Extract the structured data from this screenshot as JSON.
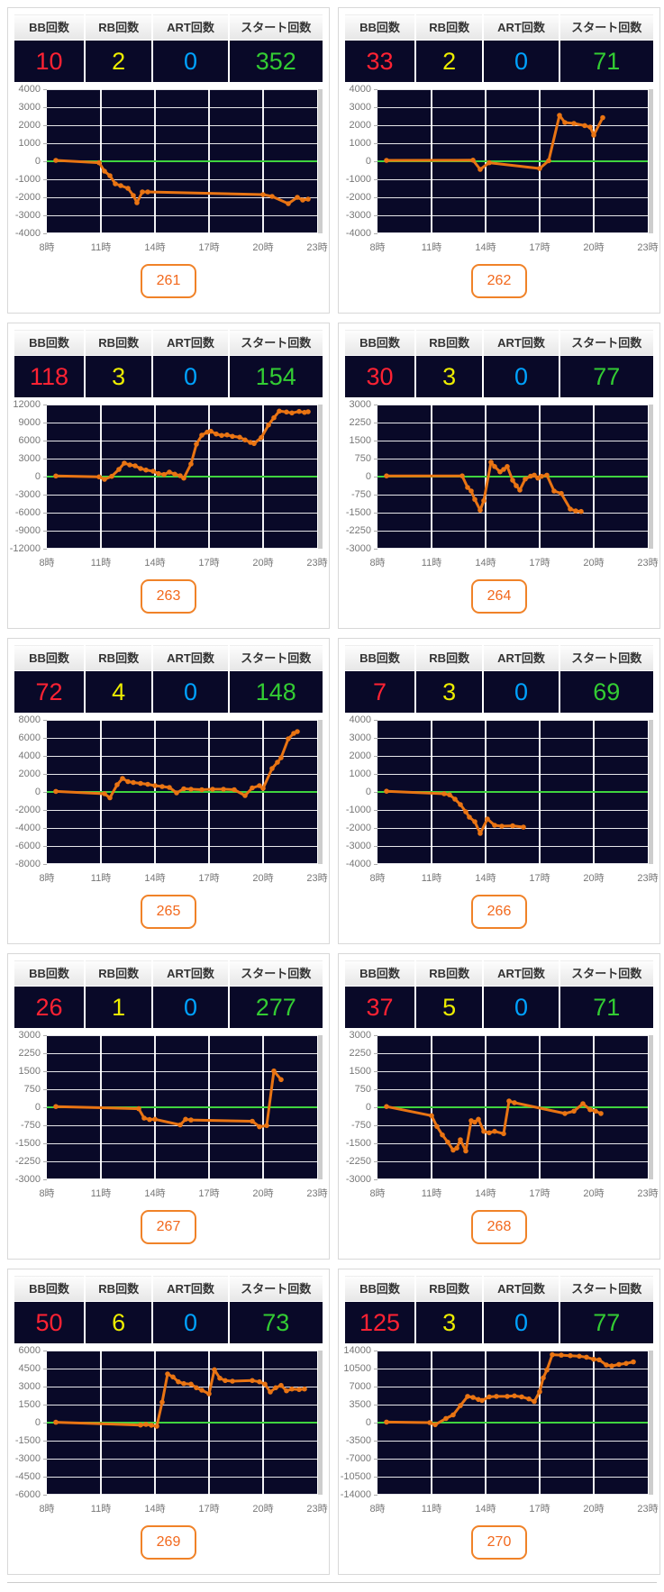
{
  "columns": [
    "BB回数",
    "RB回数",
    "ART回数",
    "スタート回数"
  ],
  "x_ticks": [
    "8時",
    "11時",
    "14時",
    "17時",
    "20時",
    "23時"
  ],
  "x_tick_hours": [
    8,
    11,
    14,
    17,
    20,
    23
  ],
  "colors": {
    "value_colors": [
      "#ff2233",
      "#ededoo",
      "#00a2ff",
      "#33cc33"
    ],
    "bb": "#ff2233",
    "rb": "#eded00",
    "art": "#00a2ff",
    "start": "#33cc33",
    "line": "#e97413",
    "zero_line": "#3fd43f",
    "plot_bg": "#090928",
    "grid_line": "#ffffff",
    "badge_border": "#f08228",
    "badge_text": "#f2681c"
  },
  "chart_data": [
    {
      "type": "line",
      "machine": "261",
      "values": [
        "10",
        "2",
        "0",
        "352"
      ],
      "ylim": [
        -4000,
        4000
      ],
      "y_step": 1000,
      "y_ticks": [
        "4000",
        "3000",
        "2000",
        "1000",
        "0",
        "-1000",
        "-2000",
        "-3000",
        "-4000"
      ],
      "points": [
        [
          8.5,
          50
        ],
        [
          10.9,
          -80
        ],
        [
          11.2,
          -550
        ],
        [
          11.5,
          -800
        ],
        [
          11.8,
          -1250
        ],
        [
          12.1,
          -1350
        ],
        [
          12.5,
          -1500
        ],
        [
          12.8,
          -1900
        ],
        [
          13.0,
          -2300
        ],
        [
          13.3,
          -1700
        ],
        [
          13.6,
          -1700
        ],
        [
          20.0,
          -1850
        ],
        [
          20.5,
          -1950
        ],
        [
          21.4,
          -2350
        ],
        [
          21.9,
          -2000
        ],
        [
          22.2,
          -2150
        ],
        [
          22.5,
          -2100
        ]
      ]
    },
    {
      "type": "line",
      "machine": "262",
      "values": [
        "33",
        "2",
        "0",
        "71"
      ],
      "ylim": [
        -4000,
        4000
      ],
      "y_step": 1000,
      "y_ticks": [
        "4000",
        "3000",
        "2000",
        "1000",
        "0",
        "-1000",
        "-2000",
        "-3000",
        "-4000"
      ],
      "points": [
        [
          8.5,
          50
        ],
        [
          13.3,
          60
        ],
        [
          13.7,
          -450
        ],
        [
          14.2,
          -80
        ],
        [
          17.0,
          -400
        ],
        [
          17.5,
          30
        ],
        [
          18.1,
          2550
        ],
        [
          18.4,
          2150
        ],
        [
          18.9,
          2100
        ],
        [
          19.5,
          1980
        ],
        [
          19.8,
          1900
        ],
        [
          20.0,
          1450
        ],
        [
          20.5,
          2420
        ]
      ]
    },
    {
      "type": "line",
      "machine": "263",
      "values": [
        "118",
        "3",
        "0",
        "154"
      ],
      "ylim": [
        -12000,
        12000
      ],
      "y_step": 3000,
      "y_ticks": [
        "12000",
        "9000",
        "6000",
        "3000",
        "0",
        "-3000",
        "-6000",
        "-9000",
        "-12000"
      ],
      "points": [
        [
          8.5,
          100
        ],
        [
          10.9,
          -50
        ],
        [
          11.2,
          -450
        ],
        [
          11.6,
          50
        ],
        [
          12.0,
          1200
        ],
        [
          12.3,
          2250
        ],
        [
          12.6,
          1950
        ],
        [
          12.9,
          1800
        ],
        [
          13.2,
          1350
        ],
        [
          13.5,
          1100
        ],
        [
          13.9,
          900
        ],
        [
          14.2,
          500
        ],
        [
          14.5,
          350
        ],
        [
          14.8,
          750
        ],
        [
          15.1,
          400
        ],
        [
          15.4,
          150
        ],
        [
          15.6,
          -250
        ],
        [
          16.0,
          2100
        ],
        [
          16.3,
          5400
        ],
        [
          16.6,
          6900
        ],
        [
          16.9,
          7400
        ],
        [
          17.1,
          7550
        ],
        [
          17.4,
          7100
        ],
        [
          17.7,
          6850
        ],
        [
          18.0,
          6950
        ],
        [
          18.3,
          6700
        ],
        [
          18.7,
          6550
        ],
        [
          19.0,
          6100
        ],
        [
          19.3,
          5700
        ],
        [
          19.5,
          5500
        ],
        [
          19.9,
          6500
        ],
        [
          20.3,
          8600
        ],
        [
          20.6,
          9800
        ],
        [
          20.9,
          10900
        ],
        [
          21.3,
          10750
        ],
        [
          21.6,
          10600
        ],
        [
          22.0,
          10850
        ],
        [
          22.3,
          10700
        ],
        [
          22.5,
          10800
        ]
      ]
    },
    {
      "type": "line",
      "machine": "264",
      "values": [
        "30",
        "3",
        "0",
        "77"
      ],
      "ylim": [
        -3000,
        3000
      ],
      "y_step": 750,
      "y_ticks": [
        "3000",
        "2250",
        "1500",
        "750",
        "0",
        "-750",
        "-1500",
        "-2250",
        "-3000"
      ],
      "points": [
        [
          8.5,
          30
        ],
        [
          12.7,
          30
        ],
        [
          13.0,
          -450
        ],
        [
          13.2,
          -600
        ],
        [
          13.4,
          -950
        ],
        [
          13.7,
          -1400
        ],
        [
          13.9,
          -1000
        ],
        [
          14.3,
          600
        ],
        [
          14.5,
          420
        ],
        [
          14.8,
          200
        ],
        [
          15.0,
          300
        ],
        [
          15.2,
          420
        ],
        [
          15.5,
          -150
        ],
        [
          15.7,
          -380
        ],
        [
          15.9,
          -560
        ],
        [
          16.2,
          -100
        ],
        [
          16.5,
          20
        ],
        [
          16.7,
          60
        ],
        [
          16.9,
          -60
        ],
        [
          17.1,
          10
        ],
        [
          17.4,
          60
        ],
        [
          17.8,
          -600
        ],
        [
          18.2,
          -700
        ],
        [
          18.7,
          -1350
        ],
        [
          19.0,
          -1430
        ],
        [
          19.3,
          -1450
        ]
      ]
    },
    {
      "type": "line",
      "machine": "265",
      "values": [
        "72",
        "4",
        "0",
        "148"
      ],
      "ylim": [
        -8000,
        8000
      ],
      "y_step": 2000,
      "y_ticks": [
        "8000",
        "6000",
        "4000",
        "2000",
        "0",
        "-2000",
        "-4000",
        "-6000",
        "-8000"
      ],
      "points": [
        [
          8.5,
          60
        ],
        [
          11.2,
          -200
        ],
        [
          11.5,
          -650
        ],
        [
          11.9,
          800
        ],
        [
          12.2,
          1500
        ],
        [
          12.5,
          1150
        ],
        [
          12.8,
          1050
        ],
        [
          13.2,
          950
        ],
        [
          13.6,
          850
        ],
        [
          14.0,
          700
        ],
        [
          14.4,
          600
        ],
        [
          14.8,
          500
        ],
        [
          15.2,
          -100
        ],
        [
          15.6,
          350
        ],
        [
          16.0,
          300
        ],
        [
          16.6,
          250
        ],
        [
          17.2,
          300
        ],
        [
          17.8,
          300
        ],
        [
          18.4,
          250
        ],
        [
          19.0,
          -400
        ],
        [
          19.4,
          450
        ],
        [
          19.8,
          700
        ],
        [
          20.0,
          400
        ],
        [
          20.5,
          2600
        ],
        [
          20.8,
          3300
        ],
        [
          21.0,
          3800
        ],
        [
          21.4,
          5900
        ],
        [
          21.7,
          6500
        ],
        [
          21.9,
          6700
        ]
      ]
    },
    {
      "type": "line",
      "machine": "266",
      "values": [
        "7",
        "3",
        "0",
        "69"
      ],
      "ylim": [
        -4000,
        4000
      ],
      "y_step": 1000,
      "y_ticks": [
        "4000",
        "3000",
        "2000",
        "1000",
        "0",
        "-1000",
        "-2000",
        "-3000",
        "-4000"
      ],
      "points": [
        [
          8.5,
          40
        ],
        [
          11.7,
          -100
        ],
        [
          12.0,
          -160
        ],
        [
          12.3,
          -400
        ],
        [
          12.6,
          -700
        ],
        [
          12.9,
          -1100
        ],
        [
          13.1,
          -1400
        ],
        [
          13.4,
          -1650
        ],
        [
          13.7,
          -2300
        ],
        [
          14.1,
          -1500
        ],
        [
          14.5,
          -1850
        ],
        [
          14.9,
          -1900
        ],
        [
          15.5,
          -1880
        ],
        [
          16.1,
          -1950
        ]
      ]
    },
    {
      "type": "line",
      "machine": "267",
      "values": [
        "26",
        "1",
        "0",
        "277"
      ],
      "ylim": [
        -3000,
        3000
      ],
      "y_step": 750,
      "y_ticks": [
        "3000",
        "2250",
        "1500",
        "750",
        "0",
        "-750",
        "-1500",
        "-2250",
        "-3000"
      ],
      "points": [
        [
          8.5,
          30
        ],
        [
          13.1,
          -60
        ],
        [
          13.4,
          -450
        ],
        [
          13.7,
          -510
        ],
        [
          14.0,
          -500
        ],
        [
          15.4,
          -730
        ],
        [
          15.7,
          -500
        ],
        [
          16.0,
          -530
        ],
        [
          19.4,
          -580
        ],
        [
          19.8,
          -810
        ],
        [
          20.2,
          -760
        ],
        [
          20.6,
          1510
        ],
        [
          21.0,
          1150
        ]
      ]
    },
    {
      "type": "line",
      "machine": "268",
      "values": [
        "37",
        "5",
        "0",
        "71"
      ],
      "ylim": [
        -3000,
        3000
      ],
      "y_step": 750,
      "y_ticks": [
        "3000",
        "2250",
        "1500",
        "750",
        "0",
        "-750",
        "-1500",
        "-2250",
        "-3000"
      ],
      "points": [
        [
          8.5,
          30
        ],
        [
          11.0,
          -350
        ],
        [
          11.3,
          -800
        ],
        [
          11.6,
          -1150
        ],
        [
          11.9,
          -1450
        ],
        [
          12.2,
          -1780
        ],
        [
          12.4,
          -1700
        ],
        [
          12.6,
          -1350
        ],
        [
          12.9,
          -1820
        ],
        [
          13.2,
          -560
        ],
        [
          13.4,
          -620
        ],
        [
          13.6,
          -500
        ],
        [
          13.9,
          -1000
        ],
        [
          14.2,
          -1060
        ],
        [
          14.5,
          -1000
        ],
        [
          15.0,
          -1100
        ],
        [
          15.3,
          260
        ],
        [
          15.6,
          190
        ],
        [
          18.4,
          -260
        ],
        [
          18.9,
          -160
        ],
        [
          19.4,
          150
        ],
        [
          19.8,
          -100
        ],
        [
          20.1,
          -160
        ],
        [
          20.4,
          -260
        ]
      ]
    },
    {
      "type": "line",
      "machine": "269",
      "values": [
        "50",
        "6",
        "0",
        "73"
      ],
      "ylim": [
        -6000,
        6000
      ],
      "y_step": 1500,
      "y_ticks": [
        "6000",
        "4500",
        "3000",
        "1500",
        "0",
        "-1500",
        "-3000",
        "-4500",
        "-6000"
      ],
      "points": [
        [
          8.5,
          30
        ],
        [
          13.2,
          -200
        ],
        [
          13.5,
          -150
        ],
        [
          13.8,
          -220
        ],
        [
          14.1,
          -300
        ],
        [
          14.4,
          1700
        ],
        [
          14.7,
          4050
        ],
        [
          15.0,
          3800
        ],
        [
          15.3,
          3400
        ],
        [
          15.6,
          3250
        ],
        [
          16.0,
          3200
        ],
        [
          16.3,
          2900
        ],
        [
          16.6,
          2700
        ],
        [
          17.0,
          2400
        ],
        [
          17.3,
          4400
        ],
        [
          17.6,
          3700
        ],
        [
          17.9,
          3500
        ],
        [
          18.3,
          3450
        ],
        [
          19.4,
          3500
        ],
        [
          19.8,
          3400
        ],
        [
          20.1,
          3200
        ],
        [
          20.4,
          2550
        ],
        [
          20.7,
          2900
        ],
        [
          21.0,
          3100
        ],
        [
          21.3,
          2650
        ],
        [
          21.6,
          2800
        ],
        [
          22.0,
          2750
        ],
        [
          22.3,
          2800
        ]
      ]
    },
    {
      "type": "line",
      "machine": "270",
      "values": [
        "125",
        "3",
        "0",
        "77"
      ],
      "ylim": [
        -14000,
        14000
      ],
      "y_step": 3500,
      "y_ticks": [
        "14000",
        "10500",
        "7000",
        "3500",
        "0",
        "-3500",
        "-7000",
        "-10500",
        "-14000"
      ],
      "points": [
        [
          8.5,
          100
        ],
        [
          10.9,
          0
        ],
        [
          11.2,
          -400
        ],
        [
          11.8,
          800
        ],
        [
          12.2,
          1500
        ],
        [
          12.6,
          3300
        ],
        [
          13.0,
          5100
        ],
        [
          13.3,
          4900
        ],
        [
          13.6,
          4500
        ],
        [
          13.8,
          4300
        ],
        [
          14.2,
          5000
        ],
        [
          14.6,
          5100
        ],
        [
          15.2,
          5100
        ],
        [
          15.6,
          5200
        ],
        [
          16.0,
          5000
        ],
        [
          16.4,
          4600
        ],
        [
          16.7,
          4100
        ],
        [
          17.0,
          6000
        ],
        [
          17.2,
          8700
        ],
        [
          17.4,
          10200
        ],
        [
          17.7,
          13200
        ],
        [
          18.2,
          13100
        ],
        [
          18.7,
          13000
        ],
        [
          19.2,
          12900
        ],
        [
          19.6,
          12700
        ],
        [
          20.0,
          12300
        ],
        [
          20.3,
          12200
        ],
        [
          20.7,
          11200
        ],
        [
          21.0,
          11000
        ],
        [
          21.4,
          11300
        ],
        [
          21.8,
          11500
        ],
        [
          22.2,
          11800
        ]
      ]
    }
  ]
}
